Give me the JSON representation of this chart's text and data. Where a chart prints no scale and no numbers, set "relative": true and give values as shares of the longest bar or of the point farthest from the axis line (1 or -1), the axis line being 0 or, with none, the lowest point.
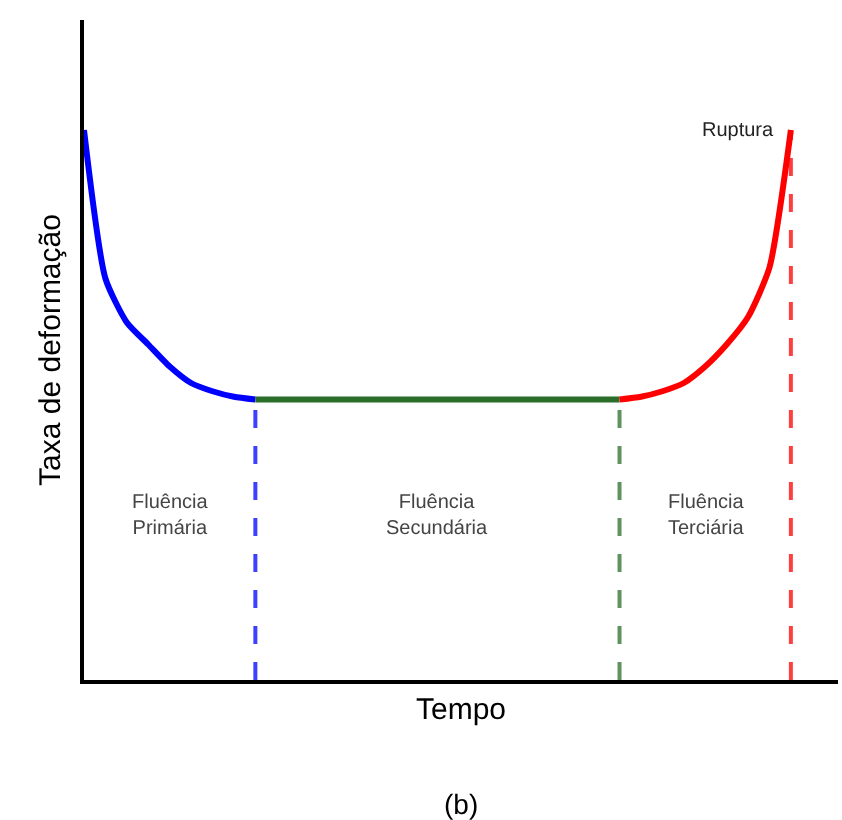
{
  "chart_data": {
    "type": "line",
    "relative": true,
    "xlabel": "Tempo",
    "ylabel": "Taxa de deformação",
    "categories": [
      null,
      null,
      null,
      null,
      null,
      null,
      null,
      null,
      null,
      null,
      null,
      null,
      null,
      null,
      null,
      null,
      null,
      null,
      null,
      null,
      null,
      null,
      null,
      null,
      null,
      null,
      null,
      null,
      null,
      null,
      null,
      null,
      null,
      null,
      null,
      null
    ],
    "series": [
      {
        "color": "#0000ff",
        "values": [
          1.0,
          0.73,
          0.65,
          0.61,
          0.57,
          0.54,
          0.525,
          0.515,
          0.51,
          null,
          null,
          null,
          null,
          null,
          null,
          null,
          null,
          null,
          null,
          null,
          null,
          null,
          null,
          null,
          null,
          null,
          null,
          null,
          null,
          null,
          null,
          null,
          null,
          null,
          null,
          null
        ]
      },
      {
        "color": "#2a6e2a",
        "values": [
          null,
          null,
          null,
          null,
          null,
          null,
          null,
          null,
          0.51,
          0.51,
          0.51,
          0.51,
          0.51,
          0.51,
          0.51,
          0.51,
          0.51,
          0.51,
          0.51,
          0.51,
          0.51,
          0.51,
          0.51,
          0.51,
          0.51,
          0.51,
          null,
          null,
          null,
          null,
          null,
          null,
          null,
          null,
          null,
          null
        ]
      },
      {
        "color": "#ff0000",
        "values": [
          null,
          null,
          null,
          null,
          null,
          null,
          null,
          null,
          null,
          null,
          null,
          null,
          null,
          null,
          null,
          null,
          null,
          null,
          null,
          null,
          null,
          null,
          null,
          null,
          null,
          0.51,
          0.515,
          0.525,
          0.54,
          0.57,
          0.61,
          0.66,
          0.75,
          1.0,
          null,
          null
        ]
      }
    ],
    "annotations": [
      "Fluência\nPrimária",
      "Fluência\nSecundária",
      "Fluência\nTerciária",
      "Ruptura",
      "(b)"
    ],
    "grid": false,
    "marker": "none",
    "line_style": "solid",
    "tick_labels": false
  }
}
